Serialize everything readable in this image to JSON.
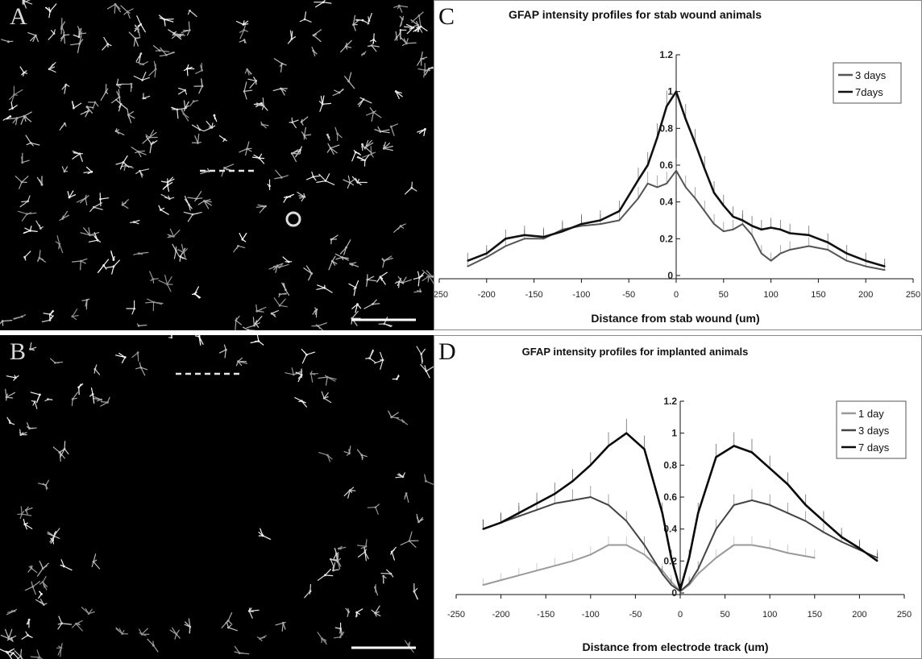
{
  "panels": {
    "a": {
      "letter": "A"
    },
    "b": {
      "letter": "B"
    },
    "c": {
      "letter": "C"
    },
    "d": {
      "letter": "D"
    }
  },
  "chart_data": [
    {
      "panel": "C",
      "type": "line",
      "title": "GFAP intensity profiles for stab wound animals",
      "xlabel": "Distance from stab wound (um)",
      "ylabel": "",
      "xlim": [
        -250,
        250
      ],
      "ylim": [
        0,
        1.2
      ],
      "xticks": [
        -250,
        -200,
        -150,
        -100,
        -50,
        0,
        50,
        100,
        150,
        200,
        250
      ],
      "yticks": [
        0,
        0.2,
        0.4,
        0.6,
        0.8,
        1,
        1.2
      ],
      "ytick_labels": [
        "0",
        "0.2",
        "0.4",
        "0.6",
        "0.8",
        "1",
        "1.2"
      ],
      "grid": false,
      "legend_position": "top-right",
      "error_bars": true,
      "series": [
        {
          "name": "3 days",
          "color": "#555555",
          "x": [
            -220,
            -200,
            -180,
            -160,
            -140,
            -120,
            -100,
            -80,
            -60,
            -40,
            -30,
            -20,
            -10,
            0,
            10,
            20,
            30,
            40,
            50,
            60,
            70,
            80,
            90,
            100,
            110,
            120,
            140,
            160,
            180,
            200,
            220
          ],
          "y": [
            0.05,
            0.1,
            0.16,
            0.2,
            0.2,
            0.25,
            0.27,
            0.28,
            0.3,
            0.42,
            0.5,
            0.48,
            0.5,
            0.57,
            0.48,
            0.42,
            0.35,
            0.28,
            0.24,
            0.25,
            0.28,
            0.22,
            0.12,
            0.08,
            0.12,
            0.14,
            0.16,
            0.14,
            0.08,
            0.05,
            0.03
          ]
        },
        {
          "name": "7days",
          "color": "#111111",
          "x": [
            -220,
            -200,
            -180,
            -160,
            -140,
            -120,
            -100,
            -80,
            -60,
            -40,
            -30,
            -20,
            -10,
            0,
            10,
            20,
            30,
            40,
            50,
            60,
            70,
            80,
            90,
            100,
            110,
            120,
            140,
            160,
            180,
            200,
            220
          ],
          "y": [
            0.08,
            0.12,
            0.2,
            0.22,
            0.21,
            0.24,
            0.28,
            0.3,
            0.35,
            0.52,
            0.6,
            0.75,
            0.92,
            1.0,
            0.85,
            0.72,
            0.58,
            0.45,
            0.38,
            0.32,
            0.3,
            0.27,
            0.25,
            0.26,
            0.25,
            0.23,
            0.22,
            0.18,
            0.12,
            0.08,
            0.05
          ]
        }
      ]
    },
    {
      "panel": "D",
      "type": "line",
      "title": "GFAP intensity profiles for implanted animals",
      "xlabel": "Distance from electrode track (um)",
      "ylabel": "",
      "xlim": [
        -250,
        250
      ],
      "ylim": [
        0,
        1.2
      ],
      "xticks": [
        -250,
        -200,
        -150,
        -100,
        -50,
        0,
        50,
        100,
        150,
        200,
        250
      ],
      "yticks": [
        0,
        0.2,
        0.4,
        0.6,
        0.8,
        1,
        1.2
      ],
      "ytick_labels": [
        "0",
        "0.2",
        "0.4",
        "0.6",
        "0.8",
        "1",
        "1.2"
      ],
      "grid": false,
      "legend_position": "top-right",
      "error_bars": true,
      "series": [
        {
          "name": "1 day",
          "color": "#9a9a9a",
          "x": [
            -220,
            -200,
            -180,
            -160,
            -140,
            -120,
            -100,
            -80,
            -60,
            -40,
            -20,
            -10,
            0,
            10,
            20,
            40,
            60,
            80,
            100,
            120,
            140,
            150
          ],
          "y": [
            0.05,
            0.08,
            0.11,
            0.14,
            0.17,
            0.2,
            0.24,
            0.3,
            0.3,
            0.24,
            0.14,
            0.07,
            0.01,
            0.05,
            0.12,
            0.22,
            0.3,
            0.3,
            0.28,
            0.25,
            0.23,
            0.22
          ]
        },
        {
          "name": "3 days",
          "color": "#444444",
          "x": [
            -220,
            -200,
            -180,
            -160,
            -140,
            -120,
            -100,
            -80,
            -60,
            -40,
            -20,
            -10,
            0,
            10,
            20,
            40,
            60,
            80,
            100,
            120,
            140,
            160,
            180,
            200,
            220
          ],
          "y": [
            0.4,
            0.44,
            0.48,
            0.52,
            0.56,
            0.58,
            0.6,
            0.55,
            0.45,
            0.3,
            0.12,
            0.05,
            0.01,
            0.06,
            0.15,
            0.4,
            0.55,
            0.58,
            0.55,
            0.5,
            0.45,
            0.38,
            0.32,
            0.27,
            0.22
          ]
        },
        {
          "name": "7 days",
          "color": "#0a0a0a",
          "x": [
            -220,
            -200,
            -180,
            -160,
            -140,
            -120,
            -100,
            -80,
            -60,
            -40,
            -20,
            -10,
            0,
            10,
            20,
            40,
            60,
            80,
            100,
            120,
            140,
            160,
            180,
            200,
            220
          ],
          "y": [
            0.4,
            0.44,
            0.5,
            0.56,
            0.62,
            0.7,
            0.8,
            0.92,
            1.0,
            0.9,
            0.5,
            0.22,
            0.02,
            0.22,
            0.5,
            0.85,
            0.92,
            0.88,
            0.78,
            0.68,
            0.55,
            0.45,
            0.35,
            0.28,
            0.2
          ]
        }
      ]
    }
  ]
}
